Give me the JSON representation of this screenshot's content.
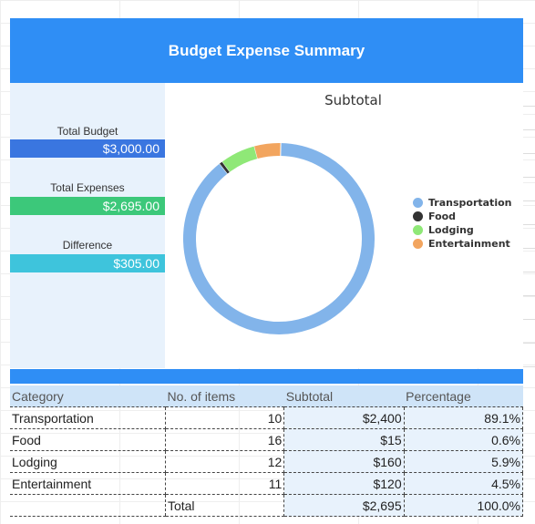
{
  "title": "Budget Expense Summary",
  "summary": {
    "total_budget_label": "Total Budget",
    "total_budget_value": "$3,000.00",
    "total_expenses_label": "Total Expenses",
    "total_expenses_value": "$2,695.00",
    "difference_label": "Difference",
    "difference_value": "$305.00",
    "colors": {
      "budget": "#3a76e0",
      "expenses": "#3cc87a",
      "difference": "#3ec4dc"
    }
  },
  "chart_data": {
    "type": "pie",
    "title": "Subtotal",
    "donut": true,
    "legend_position": "right",
    "categories": [
      "Transportation",
      "Food",
      "Lodging",
      "Entertainment"
    ],
    "values": [
      2400,
      15,
      160,
      120
    ],
    "colors": [
      "#82b4ea",
      "#333333",
      "#8fe877",
      "#f2a55f"
    ]
  },
  "table": {
    "headers": [
      "Category",
      "No. of items",
      "Subtotal",
      "Percentage"
    ],
    "rows": [
      [
        "Transportation",
        "10",
        "$2,400",
        "89.1%"
      ],
      [
        "Food",
        "16",
        "$15",
        "0.6%"
      ],
      [
        "Lodging",
        "12",
        "$160",
        "5.9%"
      ],
      [
        "Entertainment",
        "11",
        "$120",
        "4.5%"
      ]
    ],
    "total_label": "Total",
    "total_subtotal": "$2,695",
    "total_percentage": "100.0%"
  }
}
